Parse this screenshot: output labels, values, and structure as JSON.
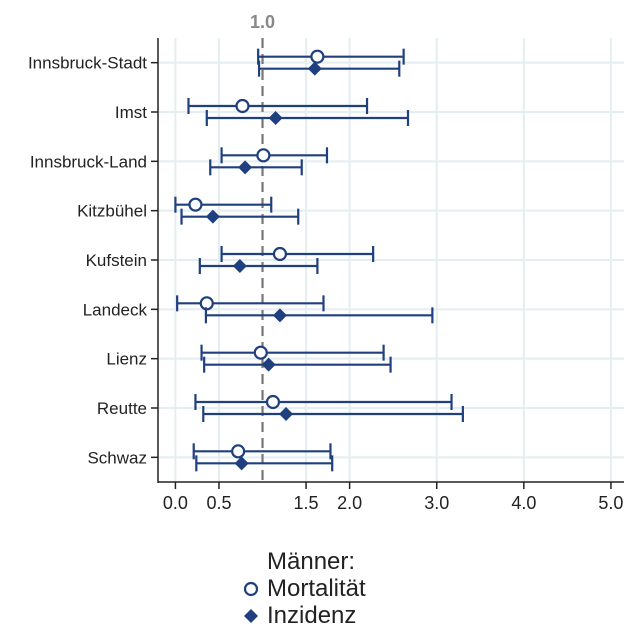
{
  "chart_data": {
    "type": "forest",
    "title": "",
    "xlabel": "",
    "ylabel": "",
    "reference_line": {
      "value": 1.0,
      "label": "1.0"
    },
    "xlim": [
      -0.2,
      5.15
    ],
    "xticks": [
      0.0,
      0.5,
      1.5,
      2.0,
      3.0,
      4.0,
      5.0
    ],
    "xtick_labels": [
      "0.0",
      "0.5",
      "1.5",
      "2.0",
      "3.0",
      "4.0",
      "5.0"
    ],
    "grid": true,
    "legend_position": "bottom",
    "legend_title": "Männer:",
    "categories": [
      "Innsbruck-Stadt",
      "Imst",
      "Innsbruck-Land",
      "Kitzbühel",
      "Kufstein",
      "Landeck",
      "Lienz",
      "Reutte",
      "Schwaz"
    ],
    "series": [
      {
        "name": "Mortalität",
        "marker": "circle-open",
        "color": "#1f3f7f",
        "estimate": [
          1.63,
          0.77,
          1.01,
          0.23,
          1.2,
          0.36,
          0.98,
          1.12,
          0.72
        ],
        "ci_low": [
          0.95,
          0.15,
          0.53,
          0.0,
          0.53,
          0.02,
          0.3,
          0.23,
          0.21
        ],
        "ci_high": [
          2.62,
          2.2,
          1.74,
          1.1,
          2.27,
          1.7,
          2.39,
          3.17,
          1.78
        ]
      },
      {
        "name": "Inzidenz",
        "marker": "diamond-filled",
        "color": "#1f3f7f",
        "estimate": [
          1.6,
          1.15,
          0.8,
          0.43,
          0.74,
          1.2,
          1.07,
          1.27,
          0.76
        ],
        "ci_low": [
          0.96,
          0.36,
          0.4,
          0.07,
          0.28,
          0.35,
          0.33,
          0.32,
          0.24
        ],
        "ci_high": [
          2.57,
          2.67,
          1.45,
          1.41,
          1.63,
          2.95,
          2.47,
          3.3,
          1.8
        ]
      }
    ]
  }
}
